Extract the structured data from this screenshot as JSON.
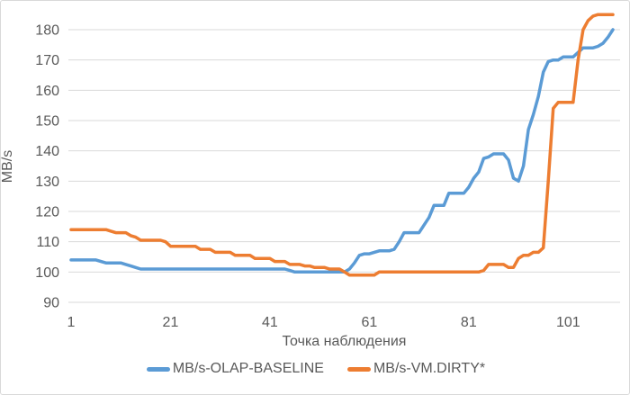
{
  "style": {
    "background": "#ffffff",
    "frame_border_color": "#d9d9d9",
    "grid_color": "#d9d9d9",
    "axis_text_color": "#595959",
    "series1_color": "#5b9bd5",
    "series2_color": "#ed7d31"
  },
  "chart_data": {
    "type": "line",
    "title": "",
    "xlabel": "Точка наблюдения",
    "ylabel": "MB/s",
    "ylim": [
      90,
      180
    ],
    "y_ticks": [
      90,
      100,
      110,
      120,
      130,
      140,
      150,
      160,
      170,
      180
    ],
    "x_ticks": [
      1,
      21,
      41,
      61,
      81,
      101
    ],
    "x_range": [
      1,
      110
    ],
    "grid": true,
    "legend_position": "bottom",
    "series": [
      {
        "name": "MB/s-OLAP-BASELINE",
        "color": "#5b9bd5",
        "values": [
          104,
          104,
          104,
          104,
          104,
          104,
          103.5,
          103,
          103,
          103,
          103,
          102.5,
          102,
          101.5,
          101,
          101,
          101,
          101,
          101,
          101,
          101,
          101,
          101,
          101,
          101,
          101,
          101,
          101,
          101,
          101,
          101,
          101,
          101,
          101,
          101,
          101,
          101,
          101,
          101,
          101,
          101,
          101,
          101,
          101,
          100.5,
          100,
          100,
          100,
          100,
          100,
          100,
          100,
          100,
          100,
          100,
          100,
          101,
          103,
          105.5,
          106,
          106,
          106.5,
          107,
          107,
          107,
          107.5,
          110,
          113,
          113,
          113,
          113,
          115.5,
          118,
          122,
          122,
          122,
          126,
          126,
          126,
          126,
          128,
          131,
          133,
          137.5,
          138,
          139,
          139,
          139,
          137,
          131,
          130,
          135,
          147,
          152,
          158,
          166,
          169.5,
          170,
          170,
          171,
          171,
          171,
          172.5,
          174,
          174,
          174,
          174.5,
          175.5,
          177.5,
          180
        ]
      },
      {
        "name": "MB/s-VM.DIRTY*",
        "color": "#ed7d31",
        "values": [
          114,
          114,
          114,
          114,
          114,
          114,
          114,
          114,
          113.5,
          113,
          113,
          113,
          112,
          111.5,
          110.5,
          110.5,
          110.5,
          110.5,
          110.5,
          110,
          108.5,
          108.5,
          108.5,
          108.5,
          108.5,
          108.5,
          107.5,
          107.5,
          107.5,
          106.5,
          106.5,
          106.5,
          106.5,
          105.5,
          105.5,
          105.5,
          105.5,
          104.5,
          104.5,
          104.5,
          104.5,
          103.5,
          103.5,
          103.5,
          102.5,
          102.5,
          102.5,
          102,
          102,
          101.5,
          101.5,
          101.5,
          101,
          101,
          101,
          100,
          99,
          99,
          99,
          99,
          99,
          99,
          100,
          100,
          100,
          100,
          100,
          100,
          100,
          100,
          100,
          100,
          100,
          100,
          100,
          100,
          100,
          100,
          100,
          100,
          100,
          100,
          100,
          100.5,
          102.5,
          102.5,
          102.5,
          102.5,
          101.5,
          101.5,
          104.5,
          105.5,
          105.5,
          106.5,
          106.5,
          108,
          130,
          154,
          156,
          156,
          156,
          156,
          170,
          180,
          183,
          184.5,
          185,
          185,
          185,
          185
        ]
      }
    ]
  }
}
